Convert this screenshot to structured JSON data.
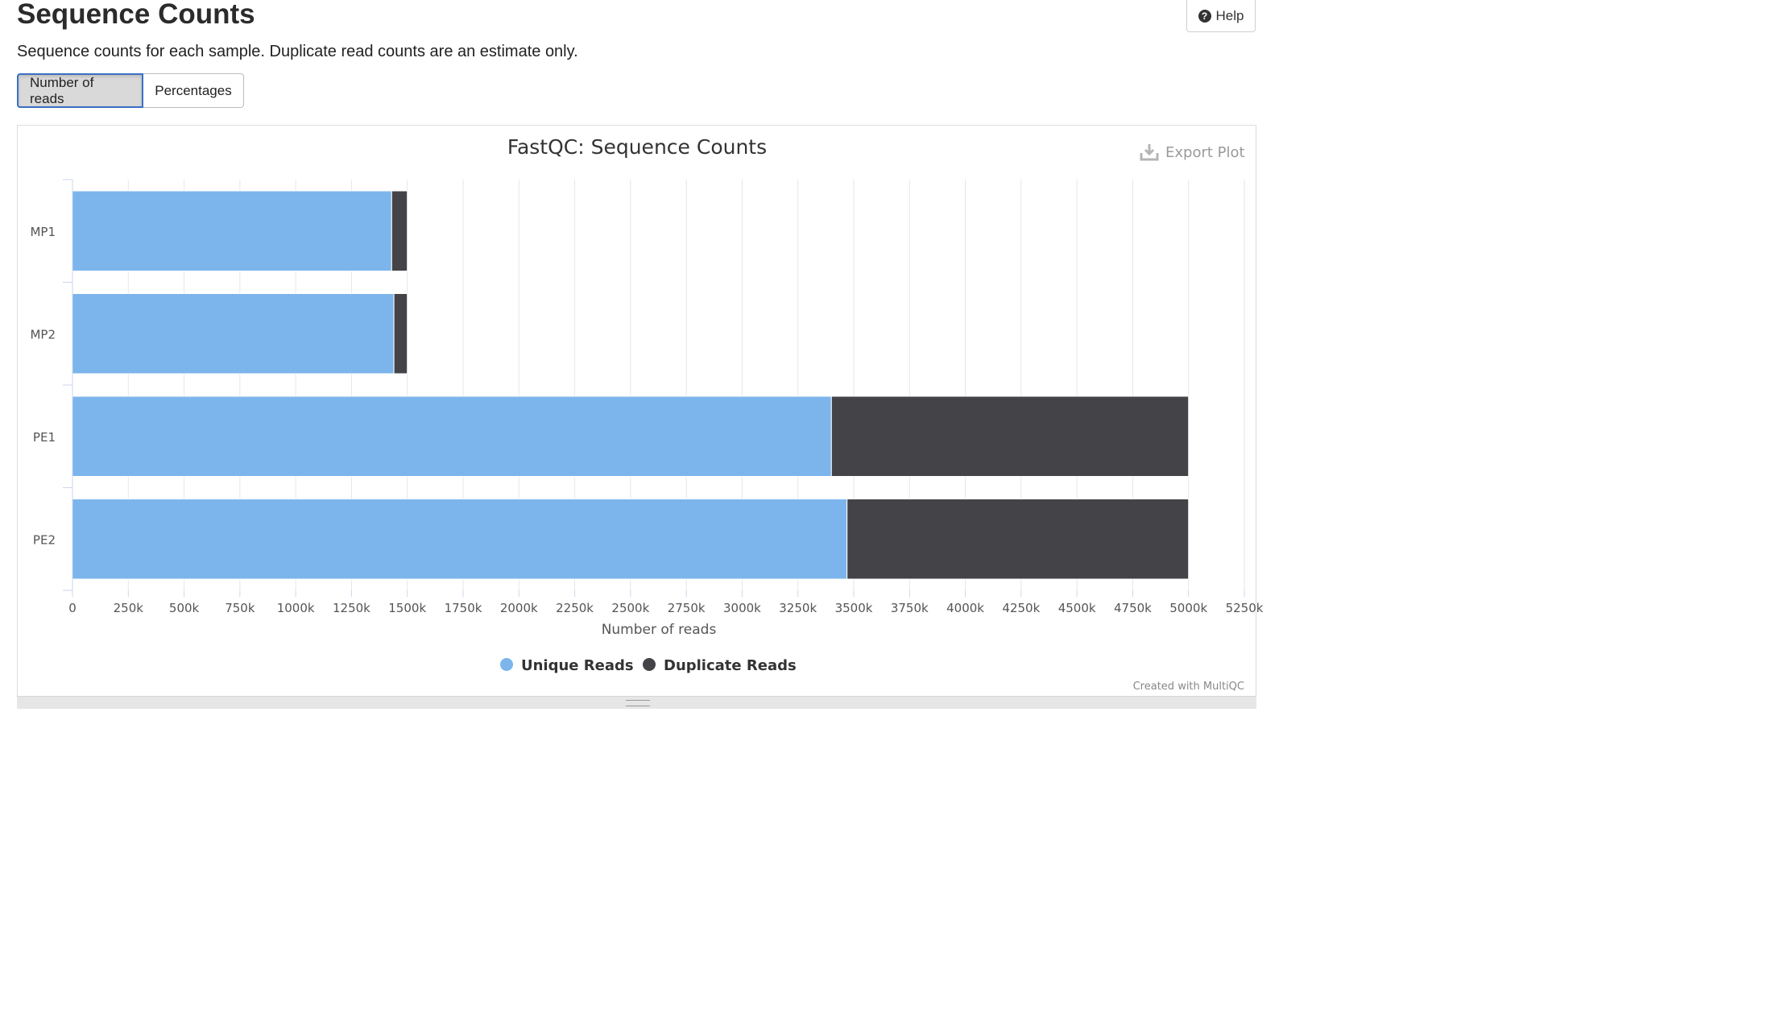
{
  "page": {
    "title": "Sequence Counts",
    "description": "Sequence counts for each sample. Duplicate read counts are an estimate only.",
    "help_label": "Help"
  },
  "toggle": {
    "options": [
      "Number of reads",
      "Percentages"
    ],
    "active": "Number of reads"
  },
  "plot": {
    "export_label": "Export Plot",
    "credit": "Created with MultiQC"
  },
  "colors": {
    "unique": "#7cb5ec",
    "duplicate": "#434348",
    "grid": "#e6e6e6",
    "accent": "#3a6fc4"
  },
  "icons": {
    "help": "question-circle-icon",
    "export": "download-icon",
    "legend": "circle-marker-icon"
  },
  "chart_data": {
    "type": "bar",
    "orientation": "horizontal",
    "stacked": true,
    "title": "FastQC: Sequence Counts",
    "xlabel": "Number of reads",
    "categories": [
      "MP1",
      "MP2",
      "PE1",
      "PE2"
    ],
    "series": [
      {
        "name": "Unique Reads",
        "values": [
          1430000,
          1440000,
          3400000,
          3470000
        ]
      },
      {
        "name": "Duplicate Reads",
        "values": [
          70000,
          60000,
          1600000,
          1530000
        ]
      }
    ],
    "xlim": [
      0,
      5250000
    ],
    "tick_step": 250000,
    "tick_labels": [
      "0",
      "250k",
      "500k",
      "750k",
      "1000k",
      "1250k",
      "1500k",
      "1750k",
      "2000k",
      "2250k",
      "2500k",
      "2750k",
      "3000k",
      "3250k",
      "3500k",
      "3750k",
      "4000k",
      "4250k",
      "4500k",
      "4750k",
      "5000k",
      "5250k"
    ],
    "grid": true,
    "legend_position": "bottom-center"
  }
}
